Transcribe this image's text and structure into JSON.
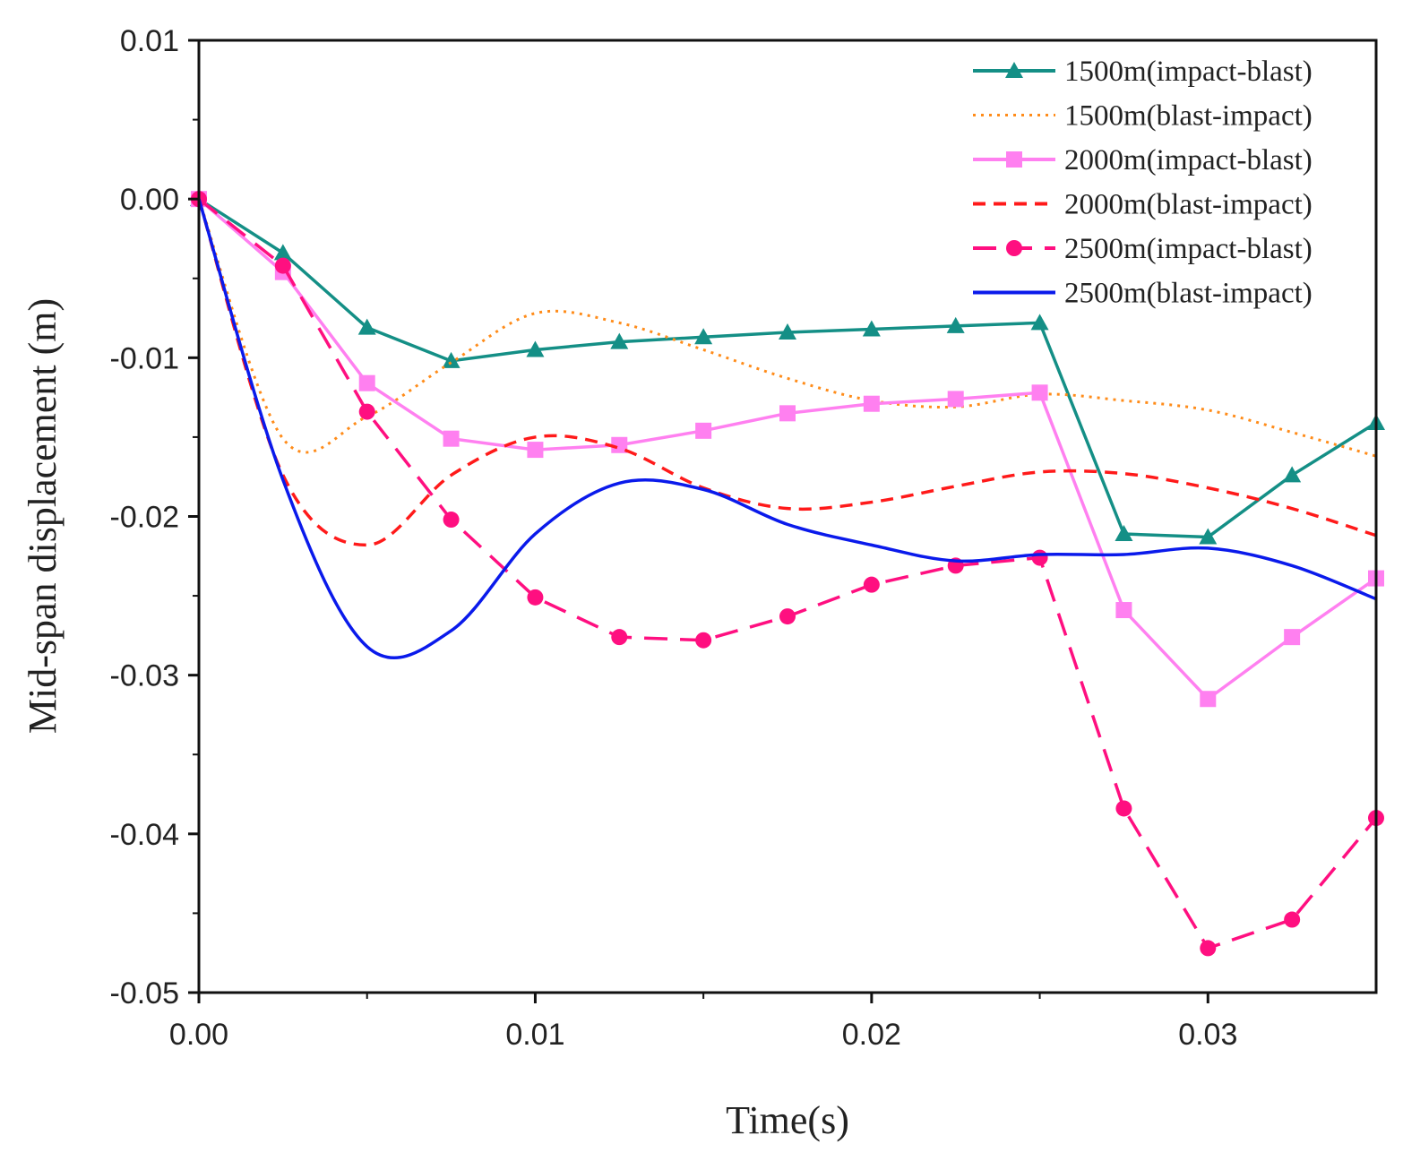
{
  "chart_data": {
    "type": "line",
    "title": "",
    "xlabel": "Time(s)",
    "ylabel": "Mid-span displacement (m)",
    "xlim": [
      0,
      0.035
    ],
    "ylim": [
      -0.05,
      0.01
    ],
    "xticks": [
      "0.00",
      "0.01",
      "0.02",
      "0.03"
    ],
    "xtick_values": [
      0,
      0.01,
      0.02,
      0.03
    ],
    "yticks": [
      "0.01",
      "0.00",
      "-0.01",
      "-0.02",
      "-0.03",
      "-0.04",
      "-0.05"
    ],
    "ytick_values": [
      0.01,
      0,
      -0.01,
      -0.02,
      -0.03,
      -0.04,
      -0.05
    ],
    "grid": false,
    "legend_position": "top-right",
    "x": [
      0,
      0.0025,
      0.005,
      0.0075,
      0.01,
      0.0125,
      0.015,
      0.0175,
      0.02,
      0.0225,
      0.025,
      0.0275,
      0.03,
      0.0325,
      0.035
    ],
    "series": [
      {
        "name": "1500m(impact-blast)",
        "color": "#148f86",
        "style": "solid",
        "marker": "triangle",
        "values": [
          0,
          -0.0034,
          -0.0081,
          -0.0102,
          -0.0095,
          -0.009,
          -0.0087,
          -0.0084,
          -0.0082,
          -0.008,
          -0.0078,
          -0.0211,
          -0.0213,
          -0.0174,
          -0.0141
        ]
      },
      {
        "name": "1500m(blast-impact)",
        "color": "#ff8c1a",
        "style": "dotted",
        "marker": "none",
        "values": [
          0,
          -0.0151,
          -0.0137,
          -0.0103,
          -0.0072,
          -0.0078,
          -0.0095,
          -0.0113,
          -0.0127,
          -0.0131,
          -0.0123,
          -0.0127,
          -0.0133,
          -0.0147,
          -0.0162
        ]
      },
      {
        "name": "2000m(impact-blast)",
        "color": "#ff80f0",
        "style": "solid",
        "marker": "square",
        "values": [
          0,
          -0.0046,
          -0.0116,
          -0.0151,
          -0.0158,
          -0.0155,
          -0.0146,
          -0.0135,
          -0.0129,
          -0.0126,
          -0.0122,
          -0.0259,
          -0.0315,
          -0.0276,
          -0.0239
        ]
      },
      {
        "name": "2000m(blast-impact)",
        "color": "#ff1a1a",
        "style": "dashed",
        "marker": "none",
        "values": [
          0,
          -0.0174,
          -0.0218,
          -0.0174,
          -0.015,
          -0.0157,
          -0.0182,
          -0.0195,
          -0.0191,
          -0.0181,
          -0.0172,
          -0.0173,
          -0.0182,
          -0.0195,
          -0.0212
        ]
      },
      {
        "name": "2500m(impact-blast)",
        "color": "#ff0f80",
        "style": "longdash",
        "marker": "circle",
        "values": [
          0,
          -0.0042,
          -0.0134,
          -0.0202,
          -0.0251,
          -0.0276,
          -0.0278,
          -0.0263,
          -0.0243,
          -0.0231,
          -0.0226,
          -0.0384,
          -0.0472,
          -0.0454,
          -0.039
        ]
      },
      {
        "name": "2500m(blast-impact)",
        "color": "#0a1aeb",
        "style": "solid",
        "marker": "none",
        "values": [
          0,
          -0.0177,
          -0.0282,
          -0.0272,
          -0.0211,
          -0.0179,
          -0.0183,
          -0.0205,
          -0.0218,
          -0.0228,
          -0.0224,
          -0.0224,
          -0.022,
          -0.0231,
          -0.0252
        ]
      }
    ]
  }
}
